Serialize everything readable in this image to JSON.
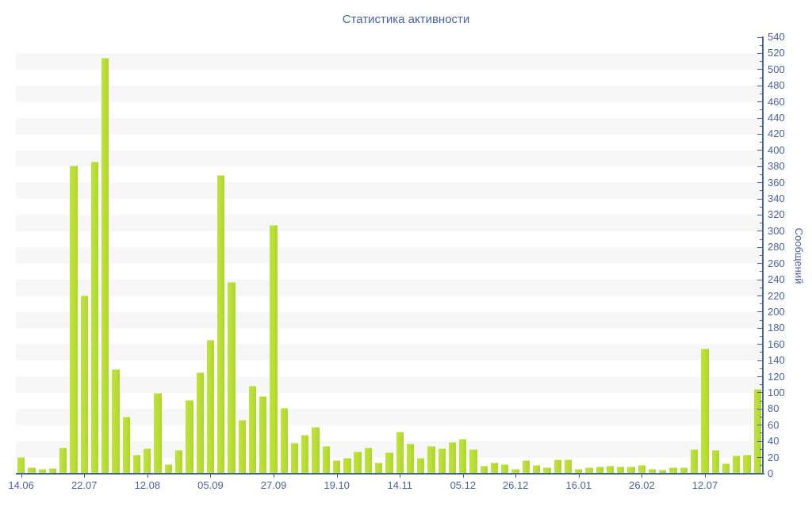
{
  "chart_data": {
    "type": "bar",
    "title": "Статистика активности",
    "ylabel": "Сообщений",
    "xlabel": "",
    "ylim": [
      0,
      540
    ],
    "y_tick_step": 20,
    "y_minor_tick_step": 10,
    "grid": "horizontal-stripes",
    "legend": "none",
    "bar_color": "#b8dd33",
    "axis_color": "#44639e",
    "text_color": "#4a63a0",
    "stripe_color": "#f6f6f7",
    "values": [
      21,
      8,
      6,
      7,
      32,
      381,
      221,
      386,
      515,
      129,
      71,
      24,
      31,
      100,
      12,
      29,
      91,
      125,
      166,
      369,
      237,
      67,
      109,
      96,
      308,
      81,
      38,
      48,
      58,
      34,
      17,
      20,
      27,
      32,
      14,
      26,
      52,
      37,
      20,
      34,
      31,
      39,
      43,
      30,
      10,
      14,
      12,
      6,
      17,
      11,
      8,
      18,
      18,
      6,
      8,
      9,
      10,
      9,
      9,
      11,
      6,
      5,
      8,
      8,
      30,
      155,
      29,
      13,
      23,
      24,
      105
    ],
    "x_tick_labels": [
      "14.06",
      "22.07",
      "12.08",
      "05.09",
      "27.09",
      "19.10",
      "14.11",
      "05.12",
      "26.12",
      "16.01",
      "26.02",
      "12.07"
    ],
    "x_tick_bar_indices": [
      0,
      6,
      12,
      18,
      24,
      30,
      36,
      42,
      47,
      53,
      59,
      65
    ]
  }
}
